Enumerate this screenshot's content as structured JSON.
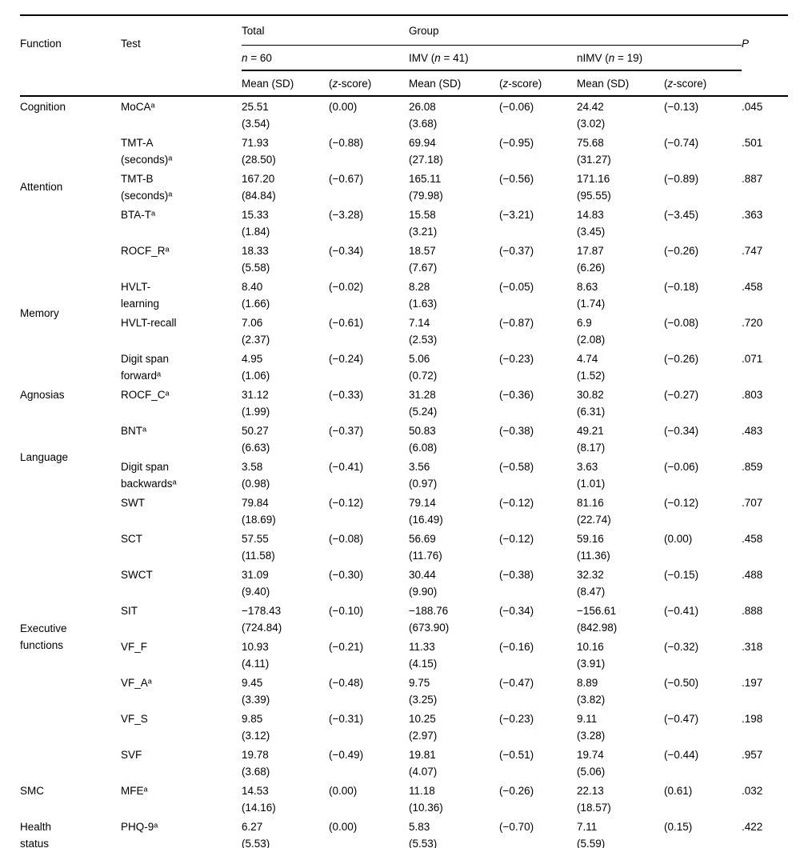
{
  "page": {
    "background_color": "#ffffff",
    "text_color": "#000000",
    "rule_color": "#000000"
  },
  "table": {
    "header": {
      "function": "Function",
      "test": "Test",
      "total": "Total",
      "group": "Group",
      "p": "P",
      "n_total": {
        "pre": "",
        "italic": "n",
        "rest": " = 60"
      },
      "n_imv": {
        "pre": "IMV (",
        "italic": "n",
        "rest": " = 41)"
      },
      "n_nimv": {
        "pre": "nIMV (",
        "italic": "n",
        "rest": " = 19)"
      },
      "mean_sd": "Mean (SD)",
      "z": {
        "pre": "(",
        "italic": "z",
        "rest": "-score)"
      }
    },
    "rows": [
      {
        "fn": "Cognition",
        "span": 1,
        "test": "MoCAᵃ",
        "tm": "25.51\n(3.54)",
        "tz": "(0.00)",
        "im": "26.08\n(3.68)",
        "iz": "(−0.06)",
        "nm": "24.42\n(3.02)",
        "nz": "(−0.13)",
        "p": ".045"
      },
      {
        "fn": "Attention",
        "span": 3,
        "test": "TMT-A\n(seconds)ᵃ",
        "tm": "71.93\n(28.50)",
        "tz": "(−0.88)",
        "im": "69.94\n(27.18)",
        "iz": "(−0.95)",
        "nm": "75.68\n(31.27)",
        "nz": "(−0.74)",
        "p": ".501"
      },
      {
        "fn": null,
        "test": "TMT-B\n(seconds)ᵃ",
        "tm": "167.20\n(84.84)",
        "tz": "(−0.67)",
        "im": "165.11\n(79.98)",
        "iz": "(−0.56)",
        "nm": "171.16\n(95.55)",
        "nz": "(−0.89)",
        "p": ".887"
      },
      {
        "fn": null,
        "test": "BTA-Tᵃ",
        "tm": "15.33\n(1.84)",
        "tz": "(−3.28)",
        "im": "15.58\n(3.21)",
        "iz": "(−3.21)",
        "nm": "14.83\n(3.45)",
        "nz": "(−3.45)",
        "p": ".363"
      },
      {
        "fn": "Memory",
        "span": 4,
        "test": "ROCF_Rᵃ",
        "tm": "18.33\n(5.58)",
        "tz": "(−0.34)",
        "im": "18.57\n(7.67)",
        "iz": "(−0.37)",
        "nm": "17.87\n(6.26)",
        "nz": "(−0.26)",
        "p": ".747"
      },
      {
        "fn": null,
        "test": "HVLT-\nlearning",
        "tm": "8.40\n(1.66)",
        "tz": "(−0.02)",
        "im": "8.28\n(1.63)",
        "iz": "(−0.05)",
        "nm": "8.63\n(1.74)",
        "nz": "(−0.18)",
        "p": ".458"
      },
      {
        "fn": null,
        "test": "HVLT-recall",
        "tm": "7.06\n(2.37)",
        "tz": "(−0.61)",
        "im": "7.14\n(2.53)",
        "iz": "(−0.87)",
        "nm": "6.9\n(2.08)",
        "nz": "(−0.08)",
        "p": ".720"
      },
      {
        "fn": null,
        "test": "Digit span\nforwardᵃ",
        "tm": "4.95\n(1.06)",
        "tz": "(−0.24)",
        "im": "5.06\n(0.72)",
        "iz": "(−0.23)",
        "nm": "4.74\n(1.52)",
        "nz": "(−0.26)",
        "p": ".071"
      },
      {
        "fn": "Agnosias",
        "span": 1,
        "test": "ROCF_Cᵃ",
        "tm": "31.12\n(1.99)",
        "tz": "(−0.33)",
        "im": "31.28\n(5.24)",
        "iz": "(−0.36)",
        "nm": "30.82\n(6.31)",
        "nz": "(−0.27)",
        "p": ".803"
      },
      {
        "fn": "Language",
        "span": 2,
        "test": "BNTᵃ",
        "tm": "50.27\n(6.63)",
        "tz": "(−0.37)",
        "im": "50.83\n(6.08)",
        "iz": "(−0.38)",
        "nm": "49.21\n(8.17)",
        "nz": "(−0.34)",
        "p": ".483"
      },
      {
        "fn": null,
        "test": "Digit span\nbackwardsᵃ",
        "tm": "3.58\n(0.98)",
        "tz": "(−0.41)",
        "im": "3.56\n(0.97)",
        "iz": "(−0.58)",
        "nm": "3.63\n(1.01)",
        "nz": "(−0.06)",
        "p": ".859"
      },
      {
        "fn": "Executive\nfunctions",
        "span": 8,
        "test": "SWT",
        "tm": "79.84\n(18.69)",
        "tz": "(−0.12)",
        "im": "79.14\n(16.49)",
        "iz": "(−0.12)",
        "nm": "81.16\n(22.74)",
        "nz": "(−0.12)",
        "p": ".707"
      },
      {
        "fn": null,
        "test": "SCT",
        "tm": "57.55\n(11.58)",
        "tz": "(−0.08)",
        "im": "56.69\n(11.76)",
        "iz": "(−0.12)",
        "nm": "59.16\n(11.36)",
        "nz": "(0.00)",
        "p": ".458"
      },
      {
        "fn": null,
        "test": "SWCT",
        "tm": "31.09\n(9.40)",
        "tz": "(−0.30)",
        "im": "30.44\n(9.90)",
        "iz": "(−0.38)",
        "nm": "32.32\n(8.47)",
        "nz": "(−0.15)",
        "p": ".488"
      },
      {
        "fn": null,
        "test": "SIT",
        "tm": "−178.43\n(724.84)",
        "tz": "(−0.10)",
        "im": "−188.76\n(673.90)",
        "iz": "(−0.34)",
        "nm": "−156.61\n(842.98)",
        "nz": "(−0.41)",
        "p": ".888"
      },
      {
        "fn": null,
        "test": "VF_F",
        "tm": "10.93\n(4.11)",
        "tz": "(−0.21)",
        "im": "11.33\n(4.15)",
        "iz": "(−0.16)",
        "nm": "10.16\n(3.91)",
        "nz": "(−0.32)",
        "p": ".318"
      },
      {
        "fn": null,
        "test": "VF_Aᵃ",
        "tm": "9.45\n(3.39)",
        "tz": "(−0.48)",
        "im": "9.75\n(3.25)",
        "iz": "(−0.47)",
        "nm": "8.89\n(3.82)",
        "nz": "(−0.50)",
        "p": ".197"
      },
      {
        "fn": null,
        "test": "VF_S",
        "tm": "9.85\n(3.12)",
        "tz": "(−0.31)",
        "im": "10.25\n(2.97)",
        "iz": "(−0.23)",
        "nm": "9.11\n(3.28)",
        "nz": "(−0.47)",
        "p": ".198"
      },
      {
        "fn": null,
        "test": "SVF",
        "tm": "19.78\n(3.68)",
        "tz": "(−0.49)",
        "im": "19.81\n(4.07)",
        "iz": "(−0.51)",
        "nm": "19.74\n(5.06)",
        "nz": "(−0.44)",
        "p": ".957"
      },
      {
        "fn": "SMC",
        "span": 1,
        "test": "MFEᵃ",
        "tm": "14.53\n(14.16)",
        "tz": "(0.00)",
        "im": "11.18\n(10.36)",
        "iz": "(−0.26)",
        "nm": "22.13\n(18.57)",
        "nz": "(0.61)",
        "p": ".032"
      },
      {
        "fn": "Health\nstatus",
        "span": 1,
        "test": "PHQ-9ᵃ",
        "tm": "6.27\n(5.53)",
        "tz": "(0.00)",
        "im": "5.83\n(5.53)",
        "iz": "(−0.70)",
        "nm": "7.11\n(5.59)",
        "nz": "(0.15)",
        "p": ".422"
      }
    ]
  }
}
